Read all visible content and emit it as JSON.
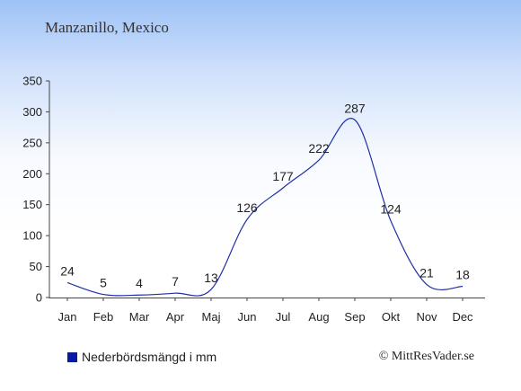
{
  "title": "Manzanillo, Mexico",
  "legend": {
    "label": "Nederbördsmängd i mm"
  },
  "credit": "© MittResVader.se",
  "colors": {
    "line": "#1f2fa8",
    "axis": "#444444",
    "text": "#222222",
    "swatch": "#0a1aa0"
  },
  "chart_data": {
    "type": "line",
    "categories": [
      "Jan",
      "Feb",
      "Mar",
      "Apr",
      "Maj",
      "Jun",
      "Jul",
      "Aug",
      "Sep",
      "Okt",
      "Nov",
      "Dec"
    ],
    "series": [
      {
        "name": "Nederbördsmängd i mm",
        "values": [
          24,
          5,
          4,
          7,
          13,
          126,
          177,
          222,
          287,
          124,
          21,
          18
        ]
      }
    ],
    "data_labels": [
      "24",
      "5",
      "4",
      "7",
      "13",
      "126",
      "177",
      "222",
      "287",
      "124",
      "21",
      "18"
    ],
    "yticks": [
      0,
      50,
      100,
      150,
      200,
      250,
      300,
      350
    ],
    "ylim": [
      0,
      350
    ],
    "grid": false,
    "title": "",
    "xlabel": "",
    "ylabel": ""
  }
}
